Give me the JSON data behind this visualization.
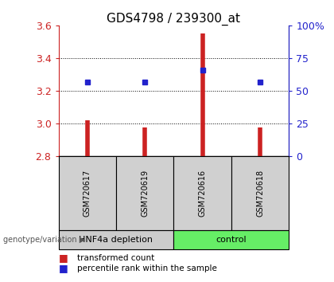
{
  "title": "GDS4798 / 239300_at",
  "samples": [
    "GSM720617",
    "GSM720619",
    "GSM720616",
    "GSM720618"
  ],
  "red_values": [
    3.02,
    2.975,
    3.55,
    2.975
  ],
  "blue_values": [
    3.255,
    3.255,
    3.325,
    3.255
  ],
  "y_min": 2.8,
  "y_max": 3.6,
  "y_ticks": [
    2.8,
    3.0,
    3.2,
    3.4,
    3.6
  ],
  "right_y_ticks": [
    0,
    25,
    50,
    75,
    100
  ],
  "right_y_labels": [
    "0",
    "25",
    "50",
    "75",
    "100%"
  ],
  "bar_color": "#cc2222",
  "dot_color": "#2222cc",
  "groups": [
    {
      "label": "HNF4a depletion",
      "color": "#cccccc",
      "indices": [
        0,
        1
      ]
    },
    {
      "label": "control",
      "color": "#66ee66",
      "indices": [
        2,
        3
      ]
    }
  ],
  "legend_items": [
    {
      "color": "#cc2222",
      "label": "transformed count"
    },
    {
      "color": "#2222cc",
      "label": "percentile rank within the sample"
    }
  ],
  "title_fontsize": 11,
  "tick_fontsize": 9,
  "sample_fontsize": 7,
  "group_fontsize": 8,
  "legend_fontsize": 7.5
}
